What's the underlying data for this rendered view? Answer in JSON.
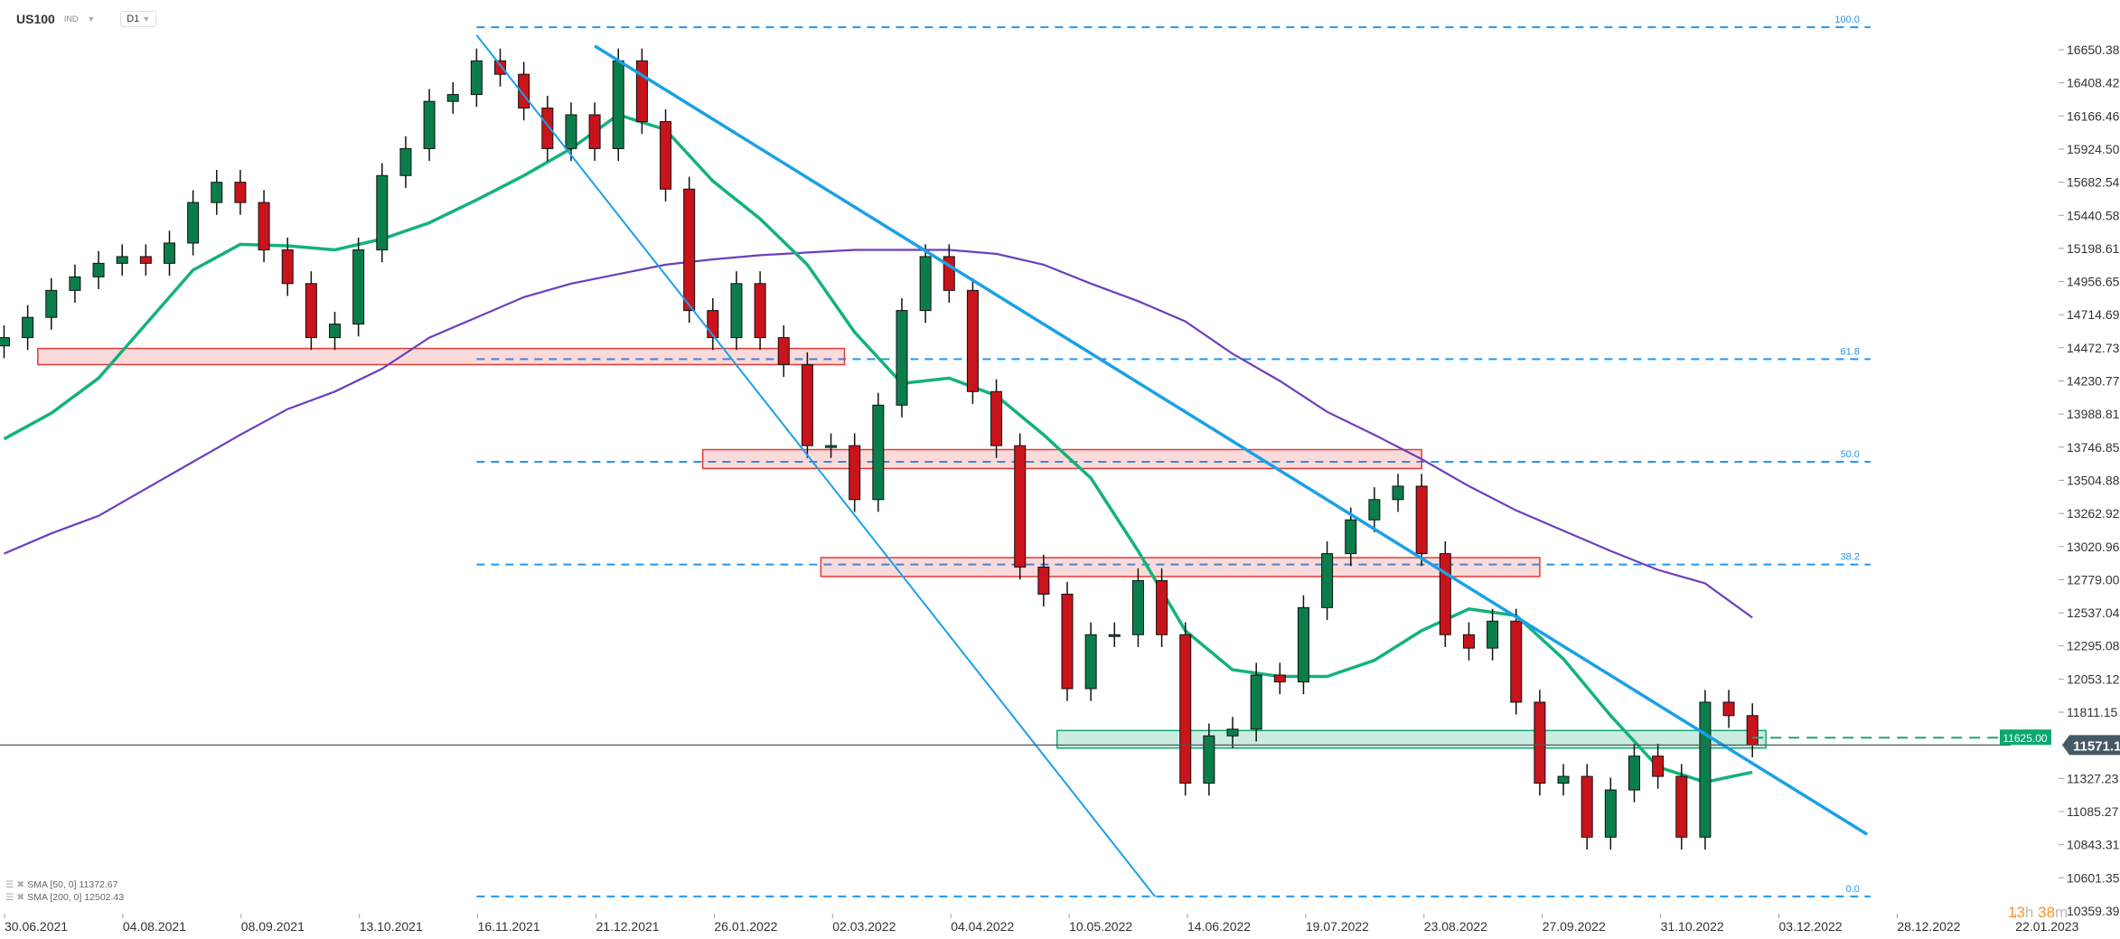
{
  "header": {
    "symbol": "US100",
    "type": "IND",
    "timeframe": "D1"
  },
  "legend": [
    {
      "label": "SMA",
      "params": "[50,  0]",
      "value": "11372.67"
    },
    {
      "label": "SMA",
      "params": "[200,  0]",
      "value": "12502.43"
    }
  ],
  "countdown": {
    "hours": "13",
    "h": "h",
    "minutes": "38",
    "m": "m"
  },
  "colors": {
    "up": "#0b7d4b",
    "down": "#c8141a",
    "sma50": "#14b27b",
    "sma200": "#6b3fc0",
    "trend": "#1aa0e8",
    "fib": "#2196f3",
    "resistance_zone": "#e53935",
    "support_zone": "#17a873",
    "price_line": "#455a64"
  },
  "chart_data": {
    "type": "candlestick",
    "note_resolution": "weekly",
    "first_date": "2021-07-02",
    "ylim": [
      10282,
      16900
    ],
    "y_ticks": [
      "16650.38",
      "16408.42",
      "16166.46",
      "15924.50",
      "15682.54",
      "15440.58",
      "15198.61",
      "14956.65",
      "14714.69",
      "14472.73",
      "14230.77",
      "13988.81",
      "13746.85",
      "13504.88",
      "13262.92",
      "13020.96",
      "12779.00",
      "12537.04",
      "12295.08",
      "12053.12",
      "11811.15",
      "11571.17",
      "11327.23",
      "11085.27",
      "10843.31",
      "10601.35",
      "10359.39"
    ],
    "x_ticks": [
      "30.06.2021",
      "04.08.2021",
      "08.09.2021",
      "13.10.2021",
      "16.11.2021",
      "21.12.2021",
      "26.01.2022",
      "02.03.2022",
      "04.04.2022",
      "10.05.2022",
      "14.06.2022",
      "19.07.2022",
      "23.08.2022",
      "27.09.2022",
      "31.10.2022",
      "03.12.2022",
      "28.12.2022",
      "22.01.2023"
    ],
    "close": [
      14547,
      14695,
      14892,
      14991,
      15090,
      15139,
      15090,
      15238,
      15534,
      15682,
      15534,
      15188,
      14942,
      14547,
      14646,
      15188,
      15731,
      15928,
      16273,
      16323,
      16569,
      16471,
      16224,
      15928,
      16175,
      15928,
      16569,
      16125,
      15632,
      14745,
      14547,
      14942,
      14547,
      14350,
      13758,
      13758,
      13364,
      14054,
      14745,
      15139,
      14892,
      14153,
      13758,
      12871,
      12673,
      11983,
      12377,
      12377,
      12772,
      12377,
      11292,
      11638,
      11687,
      12082,
      12032,
      12575,
      12969,
      13216,
      13364,
      13462,
      12969,
      12377,
      12279,
      12476,
      11884,
      11292,
      11342,
      10898,
      11243,
      11490,
      11342,
      10898,
      11884,
      11786,
      11571
    ],
    "sma50_biweekly": [
      13807,
      13995,
      14251,
      14646,
      15040,
      15228,
      15218,
      15188,
      15267,
      15386,
      15553,
      15731,
      15928,
      16175,
      16066,
      15691,
      15415,
      15080,
      14587,
      14212,
      14251,
      14123,
      13837,
      13521,
      12989,
      12407,
      12121,
      12072,
      12072,
      12190,
      12407,
      12565,
      12516,
      12200,
      11786,
      11411,
      11300,
      11373
    ],
    "sma200_biweekly": [
      12969,
      13117,
      13245,
      13443,
      13640,
      13837,
      14025,
      14153,
      14320,
      14547,
      14695,
      14843,
      14942,
      15011,
      15080,
      15119,
      15149,
      15169,
      15188,
      15188,
      15188,
      15159,
      15080,
      14942,
      14814,
      14666,
      14429,
      14231,
      14005,
      13837,
      13660,
      13462,
      13285,
      13137,
      12989,
      12851,
      12752,
      12502
    ],
    "last_price": "11571.17",
    "level_label": "11625.00",
    "level_price": 11625,
    "fib": {
      "from_date": "2021-11-19",
      "to_date": "2023-01-06",
      "levels": [
        {
          "label": "100.0",
          "price": 16815
        },
        {
          "label": "61.8",
          "price": 14390
        },
        {
          "label": "50.0",
          "price": 13640
        },
        {
          "label": "38.2",
          "price": 12890
        },
        {
          "label": "0.0",
          "price": 10465
        }
      ]
    },
    "zones": [
      {
        "kind": "resistance",
        "from": "2021-07-12",
        "to": "2022-03-08",
        "top": 14468,
        "bottom": 14350
      },
      {
        "kind": "resistance",
        "from": "2022-01-25",
        "to": "2022-08-26",
        "top": 13729,
        "bottom": 13591
      },
      {
        "kind": "resistance",
        "from": "2022-03-01",
        "to": "2022-09-30",
        "top": 12940,
        "bottom": 12802
      },
      {
        "kind": "support",
        "from": "2022-05-10",
        "to": "2022-12-06",
        "top": 11677,
        "bottom": 11549
      }
    ],
    "trendlines": [
      {
        "from": [
          "2021-11-19",
          16757
        ],
        "to": [
          "2022-06-08",
          10464
        ],
        "width": "thin"
      },
      {
        "from": [
          "2021-12-24",
          16678
        ],
        "to": [
          "2023-01-05",
          10918
        ],
        "width": "thick"
      }
    ]
  }
}
